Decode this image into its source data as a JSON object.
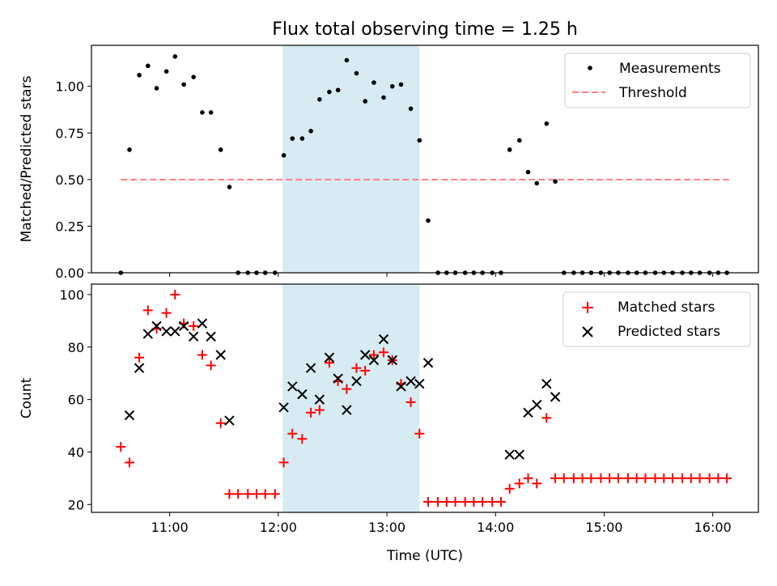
{
  "title": "Flux total observing time = 1.25 h",
  "colors": {
    "highlight": "#add8e6",
    "measurement": "#000000",
    "threshold": "#ff7f7f",
    "matched": "#ff0000",
    "predicted": "#000000"
  },
  "chart_data": [
    {
      "type": "scatter",
      "panel": "top",
      "ylabel": "Matched/Predicted stars",
      "xlabel": "",
      "xlim": [
        10.28,
        16.42
      ],
      "ylim": [
        0,
        1.22
      ],
      "yticks": [
        0,
        0.25,
        0.5,
        0.75,
        1.0
      ],
      "ytick_labels": [
        "0.00",
        "0.25",
        "0.50",
        "0.75",
        "1.00"
      ],
      "xticks": [
        11,
        12,
        13,
        14,
        15,
        16
      ],
      "highlight_x": [
        12.04,
        13.3
      ],
      "legend": {
        "placement": "top-right",
        "entries": [
          "Measurements",
          "Threshold"
        ]
      },
      "threshold": {
        "name": "Threshold",
        "value": 0.5,
        "x": [
          10.55,
          16.15
        ]
      },
      "series": [
        {
          "name": "Measurements",
          "points": [
            [
              10.55,
              0.0
            ],
            [
              10.63,
              0.66
            ],
            [
              10.72,
              1.06
            ],
            [
              10.8,
              1.11
            ],
            [
              10.88,
              0.99
            ],
            [
              10.97,
              1.08
            ],
            [
              11.05,
              1.16
            ],
            [
              11.13,
              1.01
            ],
            [
              11.22,
              1.05
            ],
            [
              11.3,
              0.86
            ],
            [
              11.38,
              0.86
            ],
            [
              11.47,
              0.66
            ],
            [
              11.55,
              0.46
            ],
            [
              11.63,
              0.0
            ],
            [
              11.72,
              0.0
            ],
            [
              11.8,
              0.0
            ],
            [
              11.88,
              0.0
            ],
            [
              11.97,
              0.0
            ],
            [
              12.05,
              0.63
            ],
            [
              12.13,
              0.72
            ],
            [
              12.22,
              0.72
            ],
            [
              12.3,
              0.76
            ],
            [
              12.38,
              0.93
            ],
            [
              12.47,
              0.97
            ],
            [
              12.55,
              0.98
            ],
            [
              12.63,
              1.14
            ],
            [
              12.72,
              1.07
            ],
            [
              12.8,
              0.92
            ],
            [
              12.88,
              1.02
            ],
            [
              12.97,
              0.94
            ],
            [
              13.05,
              1.0
            ],
            [
              13.13,
              1.01
            ],
            [
              13.22,
              0.88
            ],
            [
              13.3,
              0.71
            ],
            [
              13.38,
              0.28
            ],
            [
              13.47,
              0.0
            ],
            [
              13.55,
              0.0
            ],
            [
              13.63,
              0.0
            ],
            [
              13.72,
              0.0
            ],
            [
              13.8,
              0.0
            ],
            [
              13.88,
              0.0
            ],
            [
              13.97,
              0.0
            ],
            [
              14.05,
              0.0
            ],
            [
              14.13,
              0.66
            ],
            [
              14.22,
              0.71
            ],
            [
              14.3,
              0.54
            ],
            [
              14.38,
              0.48
            ],
            [
              14.47,
              0.8
            ],
            [
              14.55,
              0.49
            ],
            [
              14.63,
              0.0
            ],
            [
              14.72,
              0.0
            ],
            [
              14.8,
              0.0
            ],
            [
              14.88,
              0.0
            ],
            [
              14.97,
              0.0
            ],
            [
              15.05,
              0.0
            ],
            [
              15.13,
              0.0
            ],
            [
              15.22,
              0.0
            ],
            [
              15.3,
              0.0
            ],
            [
              15.38,
              0.0
            ],
            [
              15.47,
              0.0
            ],
            [
              15.55,
              0.0
            ],
            [
              15.63,
              0.0
            ],
            [
              15.72,
              0.0
            ],
            [
              15.8,
              0.0
            ],
            [
              15.88,
              0.0
            ],
            [
              15.97,
              0.0
            ],
            [
              16.05,
              0.0
            ],
            [
              16.13,
              0.0
            ]
          ]
        }
      ]
    },
    {
      "type": "scatter",
      "panel": "bottom",
      "ylabel": "Count",
      "xlabel": "Time (UTC)",
      "xlim": [
        10.28,
        16.42
      ],
      "ylim": [
        17,
        104
      ],
      "yticks": [
        20,
        40,
        60,
        80,
        100
      ],
      "ytick_labels": [
        "20",
        "40",
        "60",
        "80",
        "100"
      ],
      "xticks": [
        11,
        12,
        13,
        14,
        15,
        16
      ],
      "xtick_labels": [
        "11:00",
        "12:00",
        "13:00",
        "14:00",
        "15:00",
        "16:00"
      ],
      "highlight_x": [
        12.04,
        13.3
      ],
      "legend": {
        "placement": "top-right",
        "entries": [
          "Matched stars",
          "Predicted stars"
        ]
      },
      "series": [
        {
          "name": "Matched stars",
          "marker": "plus",
          "points": [
            [
              10.55,
              42
            ],
            [
              10.63,
              36
            ],
            [
              10.72,
              76
            ],
            [
              10.8,
              94
            ],
            [
              10.88,
              87
            ],
            [
              10.97,
              93
            ],
            [
              11.05,
              100
            ],
            [
              11.13,
              89
            ],
            [
              11.22,
              88
            ],
            [
              11.3,
              77
            ],
            [
              11.38,
              73
            ],
            [
              11.47,
              51
            ],
            [
              11.55,
              24
            ],
            [
              11.63,
              24
            ],
            [
              11.72,
              24
            ],
            [
              11.8,
              24
            ],
            [
              11.88,
              24
            ],
            [
              11.97,
              24
            ],
            [
              12.05,
              36
            ],
            [
              12.13,
              47
            ],
            [
              12.22,
              45
            ],
            [
              12.3,
              55
            ],
            [
              12.38,
              56
            ],
            [
              12.47,
              74
            ],
            [
              12.55,
              67
            ],
            [
              12.63,
              64
            ],
            [
              12.72,
              72
            ],
            [
              12.8,
              71
            ],
            [
              12.88,
              77
            ],
            [
              12.97,
              78
            ],
            [
              13.05,
              75
            ],
            [
              13.13,
              66
            ],
            [
              13.22,
              59
            ],
            [
              13.3,
              47
            ],
            [
              13.38,
              21
            ],
            [
              13.47,
              21
            ],
            [
              13.55,
              21
            ],
            [
              13.63,
              21
            ],
            [
              13.72,
              21
            ],
            [
              13.8,
              21
            ],
            [
              13.88,
              21
            ],
            [
              13.97,
              21
            ],
            [
              14.05,
              21
            ],
            [
              14.13,
              26
            ],
            [
              14.22,
              28
            ],
            [
              14.3,
              30
            ],
            [
              14.38,
              28
            ],
            [
              14.47,
              53
            ],
            [
              14.55,
              30
            ],
            [
              14.63,
              30
            ],
            [
              14.72,
              30
            ],
            [
              14.8,
              30
            ],
            [
              14.88,
              30
            ],
            [
              14.97,
              30
            ],
            [
              15.05,
              30
            ],
            [
              15.13,
              30
            ],
            [
              15.22,
              30
            ],
            [
              15.3,
              30
            ],
            [
              15.38,
              30
            ],
            [
              15.47,
              30
            ],
            [
              15.55,
              30
            ],
            [
              15.63,
              30
            ],
            [
              15.72,
              30
            ],
            [
              15.8,
              30
            ],
            [
              15.88,
              30
            ],
            [
              15.97,
              30
            ],
            [
              16.05,
              30
            ],
            [
              16.13,
              30
            ]
          ]
        },
        {
          "name": "Predicted stars",
          "marker": "x",
          "points": [
            [
              10.63,
              54
            ],
            [
              10.72,
              72
            ],
            [
              10.8,
              85
            ],
            [
              10.88,
              88
            ],
            [
              10.97,
              86
            ],
            [
              11.05,
              86
            ],
            [
              11.13,
              88
            ],
            [
              11.22,
              84
            ],
            [
              11.3,
              89
            ],
            [
              11.38,
              84
            ],
            [
              11.47,
              77
            ],
            [
              11.55,
              52
            ],
            [
              12.05,
              57
            ],
            [
              12.13,
              65
            ],
            [
              12.22,
              62
            ],
            [
              12.3,
              72
            ],
            [
              12.38,
              60
            ],
            [
              12.47,
              76
            ],
            [
              12.55,
              68
            ],
            [
              12.63,
              56
            ],
            [
              12.72,
              67
            ],
            [
              12.8,
              77
            ],
            [
              12.88,
              75
            ],
            [
              12.97,
              83
            ],
            [
              13.05,
              75
            ],
            [
              13.13,
              65
            ],
            [
              13.22,
              67
            ],
            [
              13.3,
              66
            ],
            [
              13.38,
              74
            ],
            [
              14.13,
              39
            ],
            [
              14.22,
              39
            ],
            [
              14.3,
              55
            ],
            [
              14.38,
              58
            ],
            [
              14.47,
              66
            ],
            [
              14.55,
              61
            ]
          ]
        }
      ]
    }
  ]
}
